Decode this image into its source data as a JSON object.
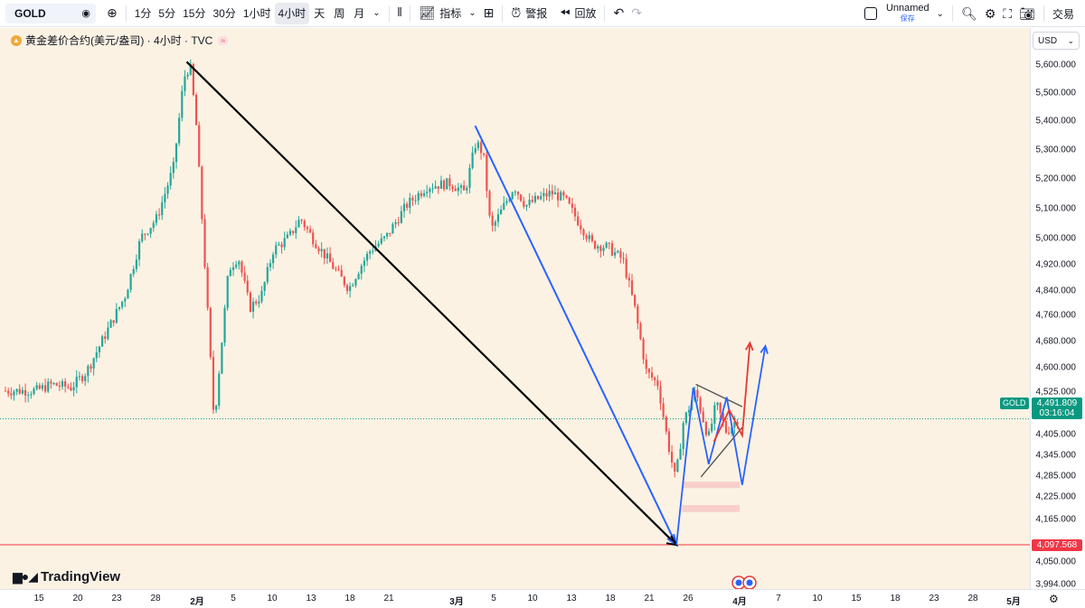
{
  "toolbar": {
    "symbol": "GOLD",
    "intervals": [
      "1分",
      "5分",
      "15分",
      "30分",
      "1小时",
      "4小时",
      "天",
      "周",
      "月"
    ],
    "active_interval": "4小时",
    "indicators_label": "指标",
    "alert_label": "警报",
    "replay_label": "回放",
    "layout_name": "Unnamed",
    "layout_status": "保存",
    "trade_label": "交易"
  },
  "legend": {
    "title": "黄金差价合约(美元/盎司) · 4小时 · TVC"
  },
  "price_scale": {
    "currency": "USD",
    "ticks": [
      "5,600.000",
      "5,500.000",
      "5,400.000",
      "5,300.000",
      "5,200.000",
      "5,100.000",
      "5,000.000",
      "4,920.000",
      "4,840.000",
      "4,760.000",
      "4,680.000",
      "4,600.000",
      "4,525.000",
      "4,405.000",
      "4,345.000",
      "4,285.000",
      "4,225.000",
      "4,165.000",
      "4,050.000",
      "3,994.000"
    ],
    "current_symbol": "GOLD",
    "current_price": "4,491.809",
    "countdown": "03:16:04",
    "marked_price": "4,097.568"
  },
  "time_scale": {
    "ticks": [
      "15",
      "20",
      "23",
      "28",
      "2月",
      "5",
      "10",
      "13",
      "18",
      "21",
      "3月",
      "5",
      "10",
      "13",
      "18",
      "21",
      "26",
      "4月",
      "7",
      "10",
      "15",
      "18",
      "23",
      "28",
      "5月"
    ]
  },
  "brand": "TradingView",
  "colors": {
    "up": "#26a69a",
    "down": "#ef5350",
    "chart_bg": "#fbf2e3",
    "current_price": "#089981",
    "marked_line": "#f23645",
    "arrow_blue": "#2962ff"
  },
  "chart_data": {
    "type": "candlestick",
    "symbol": "GOLD",
    "x": [
      "15",
      "20",
      "23",
      "28",
      "2月",
      "5",
      "10",
      "13",
      "18",
      "21",
      "3月",
      "5",
      "10",
      "13",
      "18",
      "21",
      "26",
      "4月"
    ],
    "close_path": [
      [
        0,
        4580
      ],
      [
        0.4,
        4600
      ],
      [
        0.9,
        4590
      ],
      [
        1.3,
        4640
      ],
      [
        1.8,
        4760
      ],
      [
        2.3,
        4880
      ],
      [
        2.7,
        5060
      ],
      [
        3.1,
        5120
      ],
      [
        3.5,
        5280
      ],
      [
        3.75,
        5560
      ],
      [
        3.9,
        5600
      ],
      [
        4.05,
        5420
      ],
      [
        4.3,
        4960
      ],
      [
        4.55,
        4480
      ],
      [
        4.75,
        4720
      ],
      [
        4.95,
        4960
      ],
      [
        5.2,
        5000
      ],
      [
        5.5,
        4840
      ],
      [
        5.8,
        4880
      ],
      [
        6.1,
        5020
      ],
      [
        6.5,
        5060
      ],
      [
        6.8,
        5120
      ],
      [
        7.1,
        5060
      ],
      [
        7.45,
        5000
      ],
      [
        7.8,
        4940
      ],
      [
        8.05,
        4900
      ],
      [
        8.3,
        4960
      ],
      [
        8.6,
        5020
      ],
      [
        9.0,
        5060
      ],
      [
        9.3,
        5160
      ],
      [
        9.6,
        5220
      ],
      [
        9.95,
        5230
      ],
      [
        10.3,
        5200
      ],
      [
        10.6,
        5360
      ],
      [
        10.8,
        5320
      ],
      [
        11.0,
        5080
      ],
      [
        11.3,
        5150
      ],
      [
        11.6,
        5220
      ],
      [
        11.9,
        5160
      ],
      [
        12.2,
        5180
      ],
      [
        12.55,
        5200
      ],
      [
        12.9,
        5180
      ],
      [
        13.2,
        5120
      ],
      [
        13.6,
        5040
      ],
      [
        14.0,
        5030
      ],
      [
        14.4,
        4990
      ],
      [
        14.7,
        4840
      ],
      [
        15.0,
        4640
      ],
      [
        15.3,
        4600
      ],
      [
        15.55,
        4420
      ],
      [
        15.75,
        4300
      ],
      [
        15.95,
        4480
      ],
      [
        16.2,
        4580
      ],
      [
        16.45,
        4430
      ],
      [
        16.6,
        4540
      ],
      [
        16.8,
        4450
      ],
      [
        17.0,
        4490
      ]
    ],
    "trendlines": [
      {
        "from": [
          3.75,
          5610
        ],
        "to": [
          15.7,
          4097
        ],
        "color": "black"
      },
      {
        "from": [
          10.5,
          5410
        ],
        "to": [
          15.7,
          4097
        ],
        "color": "blue"
      }
    ],
    "projections": [
      {
        "color": "blue",
        "path": [
          [
            15.7,
            4097
          ],
          [
            16.1,
            4590
          ],
          [
            16.4,
            4350
          ],
          [
            16.75,
            4560
          ],
          [
            17.05,
            4285
          ],
          [
            17.5,
            4720
          ]
        ]
      },
      {
        "color": "red",
        "path": [
          [
            16.5,
            4420
          ],
          [
            16.8,
            4520
          ],
          [
            17.05,
            4440
          ],
          [
            17.2,
            4730
          ]
        ]
      }
    ],
    "horizontal_lines": [
      {
        "price": 4097.568,
        "color": "red"
      },
      {
        "price": 4491.809,
        "color": "green",
        "style": "dotted"
      }
    ],
    "zones": [
      {
        "from_x": 15.85,
        "to_x": 17.0,
        "low": 4275,
        "high": 4295
      },
      {
        "from_x": 15.85,
        "to_x": 17.0,
        "low": 4200,
        "high": 4222
      }
    ],
    "triangle": {
      "upper": [
        [
          16.15,
          4600
        ],
        [
          17.05,
          4530
        ]
      ],
      "lower": [
        [
          16.25,
          4310
        ],
        [
          17.05,
          4465
        ]
      ]
    },
    "ylim": [
      3970,
      5690
    ],
    "grid": false
  }
}
